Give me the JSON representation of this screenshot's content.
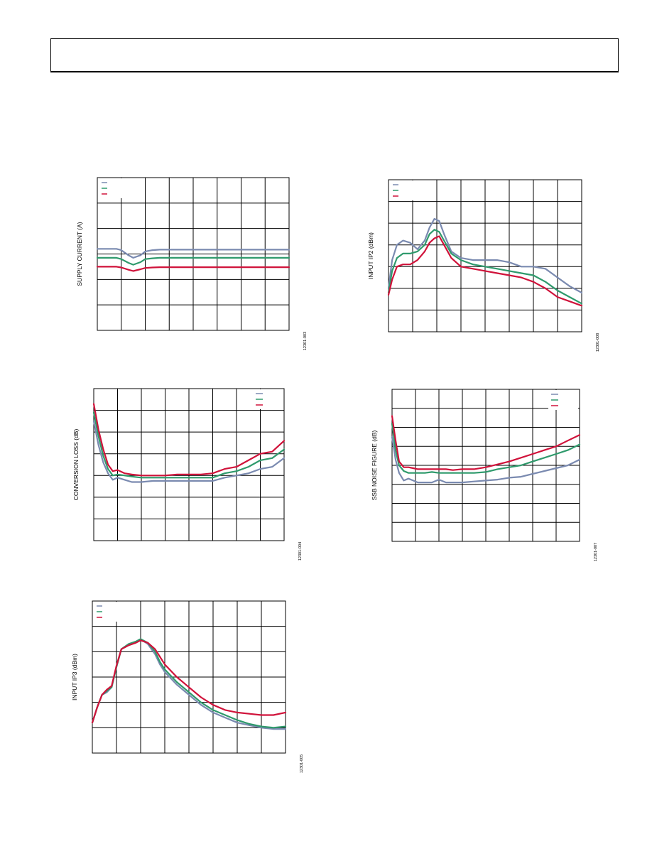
{
  "colors": {
    "blue": "#7a8ab0",
    "green": "#2f9a6c",
    "red": "#d0123a"
  },
  "chart_data": [
    {
      "type": "line",
      "ylabel": "SUPPLY CURRENT (A)",
      "figure_id": "12301-003",
      "legend_position": "top-left",
      "grid": true,
      "xlim": [
        0,
        8
      ],
      "ylim": [
        0,
        6
      ],
      "series": [
        {
          "color": "blue",
          "x": [
            0,
            0.8,
            1,
            1.3,
            1.5,
            1.8,
            2,
            2.3,
            2.6,
            3,
            4,
            5,
            6,
            7,
            8
          ],
          "y": [
            3.2,
            3.2,
            3.15,
            2.95,
            2.85,
            2.95,
            3.1,
            3.15,
            3.17,
            3.17,
            3.17,
            3.17,
            3.17,
            3.17,
            3.17
          ]
        },
        {
          "color": "green",
          "x": [
            0,
            0.8,
            1,
            1.3,
            1.5,
            1.8,
            2,
            2.3,
            2.6,
            3,
            4,
            5,
            6,
            7,
            8
          ],
          "y": [
            2.85,
            2.85,
            2.8,
            2.65,
            2.58,
            2.68,
            2.8,
            2.83,
            2.85,
            2.85,
            2.85,
            2.85,
            2.85,
            2.85,
            2.85
          ]
        },
        {
          "color": "red",
          "x": [
            0,
            0.8,
            1,
            1.3,
            1.5,
            1.8,
            2,
            2.3,
            2.6,
            3,
            4,
            5,
            6,
            7,
            8
          ],
          "y": [
            2.5,
            2.5,
            2.47,
            2.38,
            2.33,
            2.4,
            2.45,
            2.47,
            2.48,
            2.48,
            2.48,
            2.48,
            2.48,
            2.48,
            2.48
          ]
        }
      ]
    },
    {
      "type": "line",
      "ylabel": "INPUT IP2 (dBm)",
      "figure_id": "12301-008",
      "legend_position": "top-left",
      "grid": true,
      "xlim": [
        0,
        8
      ],
      "ylim": [
        0,
        7
      ],
      "series": [
        {
          "color": "blue",
          "x": [
            0,
            0.15,
            0.35,
            0.6,
            0.9,
            1.2,
            1.5,
            1.7,
            1.9,
            2.1,
            2.3,
            2.6,
            3,
            3.5,
            4,
            4.5,
            5,
            5.5,
            6,
            6.5,
            7,
            7.5,
            8
          ],
          "y": [
            2.0,
            3.3,
            4.0,
            4.2,
            4.1,
            3.8,
            4.2,
            4.8,
            5.2,
            5.1,
            4.5,
            3.7,
            3.4,
            3.3,
            3.3,
            3.3,
            3.2,
            3.0,
            3.0,
            2.9,
            2.5,
            2.1,
            1.8
          ]
        },
        {
          "color": "green",
          "x": [
            0,
            0.15,
            0.35,
            0.6,
            0.9,
            1.2,
            1.5,
            1.7,
            1.9,
            2.1,
            2.3,
            2.6,
            3,
            3.5,
            4,
            4.5,
            5,
            5.5,
            6,
            6.5,
            7,
            7.5,
            8
          ],
          "y": [
            1.8,
            2.8,
            3.4,
            3.6,
            3.6,
            3.7,
            4.0,
            4.5,
            4.7,
            4.6,
            4.2,
            3.6,
            3.3,
            3.1,
            3.0,
            2.9,
            2.8,
            2.7,
            2.6,
            2.3,
            1.9,
            1.6,
            1.3
          ]
        },
        {
          "color": "red",
          "x": [
            0,
            0.15,
            0.35,
            0.6,
            0.9,
            1.2,
            1.5,
            1.7,
            1.9,
            2.1,
            2.3,
            2.6,
            3,
            3.5,
            4,
            4.5,
            5,
            5.5,
            6,
            6.5,
            7,
            7.5,
            8
          ],
          "y": [
            1.7,
            2.4,
            3.0,
            3.1,
            3.1,
            3.3,
            3.7,
            4.1,
            4.3,
            4.4,
            4.0,
            3.4,
            3.0,
            2.9,
            2.8,
            2.7,
            2.6,
            2.5,
            2.3,
            2.0,
            1.6,
            1.4,
            1.2
          ]
        }
      ]
    },
    {
      "type": "line",
      "ylabel": "CONVERSION LOSS (dB)",
      "figure_id": "12301-004",
      "legend_position": "top-right",
      "grid": true,
      "xlim": [
        0,
        8
      ],
      "ylim": [
        0,
        7
      ],
      "series": [
        {
          "color": "blue",
          "x": [
            0,
            0.2,
            0.4,
            0.6,
            0.8,
            1,
            1.3,
            1.6,
            2,
            2.5,
            3,
            3.5,
            4,
            4.5,
            5,
            5.5,
            6,
            6.5,
            7,
            7.5,
            8
          ],
          "y": [
            5.5,
            4.4,
            3.6,
            3.1,
            2.8,
            2.9,
            2.8,
            2.7,
            2.7,
            2.75,
            2.75,
            2.75,
            2.75,
            2.75,
            2.75,
            2.9,
            3.0,
            3.1,
            3.3,
            3.4,
            3.8
          ]
        },
        {
          "color": "green",
          "x": [
            0,
            0.2,
            0.4,
            0.6,
            0.8,
            1,
            1.3,
            1.6,
            2,
            2.5,
            3,
            3.5,
            4,
            4.5,
            5,
            5.5,
            6,
            6.5,
            7,
            7.5,
            8
          ],
          "y": [
            5.9,
            4.8,
            3.9,
            3.3,
            3.0,
            3.05,
            3.0,
            2.95,
            2.9,
            2.9,
            2.9,
            2.9,
            2.9,
            2.9,
            2.9,
            3.1,
            3.2,
            3.4,
            3.7,
            3.8,
            4.2
          ]
        },
        {
          "color": "red",
          "x": [
            0,
            0.2,
            0.4,
            0.6,
            0.8,
            1,
            1.3,
            1.6,
            2,
            2.5,
            3,
            3.5,
            4,
            4.5,
            5,
            5.5,
            6,
            6.5,
            7,
            7.5,
            8
          ],
          "y": [
            6.3,
            5.1,
            4.2,
            3.5,
            3.2,
            3.25,
            3.1,
            3.05,
            3.0,
            3.0,
            3.0,
            3.05,
            3.05,
            3.05,
            3.1,
            3.3,
            3.4,
            3.7,
            4.0,
            4.1,
            4.6
          ]
        }
      ]
    },
    {
      "type": "line",
      "ylabel": "SSB NOISE FIGURE (dB)",
      "figure_id": "12301-007",
      "legend_position": "top-right",
      "grid": true,
      "xlim": [
        0,
        8
      ],
      "ylim": [
        0,
        8
      ],
      "series": [
        {
          "color": "blue",
          "x": [
            0,
            0.15,
            0.3,
            0.5,
            0.7,
            0.9,
            1.1,
            1.4,
            1.7,
            2,
            2.3,
            2.6,
            3,
            3.5,
            4,
            4.5,
            5,
            5.5,
            6,
            6.5,
            7,
            7.5,
            8
          ],
          "y": [
            5.5,
            4.3,
            3.6,
            3.2,
            3.3,
            3.2,
            3.1,
            3.1,
            3.1,
            3.25,
            3.1,
            3.1,
            3.1,
            3.15,
            3.2,
            3.25,
            3.35,
            3.4,
            3.55,
            3.7,
            3.85,
            4.0,
            4.3
          ]
        },
        {
          "color": "green",
          "x": [
            0,
            0.15,
            0.3,
            0.5,
            0.7,
            0.9,
            1.1,
            1.4,
            1.7,
            2,
            2.3,
            2.6,
            3,
            3.5,
            4,
            4.5,
            5,
            5.5,
            6,
            6.5,
            7,
            7.5,
            8
          ],
          "y": [
            6.2,
            4.8,
            4.0,
            3.7,
            3.6,
            3.6,
            3.6,
            3.6,
            3.65,
            3.6,
            3.6,
            3.6,
            3.6,
            3.6,
            3.65,
            3.8,
            3.9,
            4.0,
            4.2,
            4.4,
            4.6,
            4.8,
            5.1
          ]
        },
        {
          "color": "red",
          "x": [
            0,
            0.15,
            0.3,
            0.5,
            0.7,
            0.9,
            1.1,
            1.4,
            1.7,
            2,
            2.3,
            2.6,
            3,
            3.5,
            4,
            4.5,
            5,
            5.5,
            6,
            6.5,
            7,
            7.5,
            8
          ],
          "y": [
            6.6,
            5.3,
            4.2,
            3.9,
            3.9,
            3.85,
            3.8,
            3.8,
            3.8,
            3.8,
            3.8,
            3.75,
            3.8,
            3.8,
            3.9,
            4.05,
            4.2,
            4.4,
            4.6,
            4.8,
            5.0,
            5.3,
            5.6
          ]
        }
      ]
    },
    {
      "type": "line",
      "ylabel": "INPUT IP3 (dBm)",
      "figure_id": "12301-005",
      "legend_position": "top-left",
      "grid": true,
      "xlim": [
        0,
        8
      ],
      "ylim": [
        0,
        6
      ],
      "series": [
        {
          "color": "blue",
          "x": [
            0,
            0.2,
            0.4,
            0.6,
            0.8,
            1,
            1.2,
            1.5,
            1.8,
            2,
            2.3,
            2.6,
            2.8,
            3,
            3.5,
            4,
            4.5,
            5,
            5.5,
            6,
            6.5,
            7,
            7.5,
            8
          ],
          "y": [
            1.2,
            1.8,
            2.3,
            2.4,
            2.6,
            3.4,
            4.1,
            4.3,
            4.4,
            4.5,
            4.3,
            3.9,
            3.5,
            3.2,
            2.7,
            2.3,
            1.9,
            1.6,
            1.4,
            1.2,
            1.1,
            1.0,
            0.95,
            0.95
          ]
        },
        {
          "color": "green",
          "x": [
            0,
            0.2,
            0.4,
            0.6,
            0.8,
            1,
            1.2,
            1.5,
            1.8,
            2,
            2.3,
            2.6,
            2.8,
            3,
            3.5,
            4,
            4.5,
            5,
            5.5,
            6,
            6.5,
            7,
            7.5,
            8
          ],
          "y": [
            1.2,
            1.8,
            2.3,
            2.45,
            2.6,
            3.4,
            4.1,
            4.3,
            4.4,
            4.5,
            4.35,
            4.0,
            3.6,
            3.3,
            2.8,
            2.4,
            2.0,
            1.7,
            1.5,
            1.3,
            1.15,
            1.05,
            1.0,
            1.05
          ]
        },
        {
          "color": "red",
          "x": [
            0,
            0.2,
            0.4,
            0.6,
            0.8,
            1,
            1.2,
            1.5,
            1.8,
            2,
            2.3,
            2.6,
            2.8,
            3,
            3.5,
            4,
            4.5,
            5,
            5.5,
            6,
            6.5,
            7,
            7.5,
            8
          ],
          "y": [
            1.2,
            1.8,
            2.3,
            2.5,
            2.65,
            3.45,
            4.1,
            4.25,
            4.35,
            4.45,
            4.35,
            4.1,
            3.8,
            3.5,
            3.0,
            2.6,
            2.2,
            1.9,
            1.7,
            1.6,
            1.55,
            1.5,
            1.5,
            1.6
          ]
        }
      ]
    }
  ]
}
